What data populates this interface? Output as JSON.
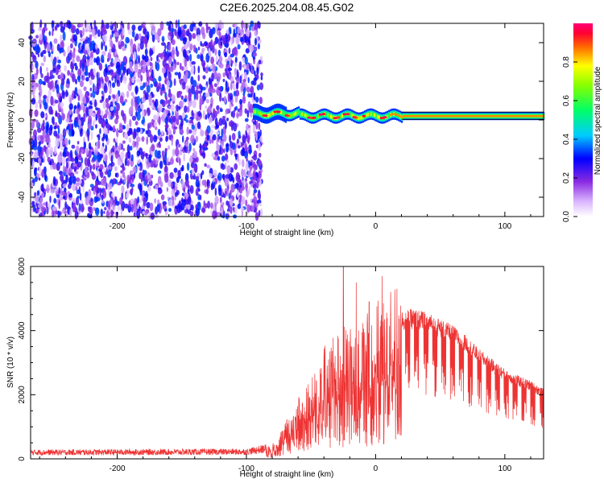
{
  "title": "C2E6.2025.204.08.45.G02",
  "colors": {
    "line": "#ee3333",
    "axis": "#000000"
  },
  "colorbar": {
    "label": "Normalized spectral amplitude",
    "range": [
      0,
      1
    ],
    "ticks": [
      "0.0",
      "0.2",
      "0.4",
      "0.6",
      "0.8"
    ],
    "tick_values": [
      0,
      0.2,
      0.4,
      0.6,
      0.8
    ],
    "colormap": "rainbow (white-violet-blue-cyan-green-yellow-red-magenta)"
  },
  "chart_data": [
    {
      "type": "heatmap",
      "xlabel": "Height of straight line (km)",
      "ylabel": "Frequency (Hz)",
      "xlim": [
        -267,
        130
      ],
      "ylim": [
        -50,
        50
      ],
      "x_ticks": [
        "-200",
        "-100",
        "0",
        "100"
      ],
      "x_tick_values": [
        -200,
        -100,
        0,
        100
      ],
      "y_ticks": [
        "-40",
        "-20",
        "0",
        "20",
        "40"
      ],
      "y_tick_values": [
        -40,
        -20,
        0,
        20,
        40
      ],
      "description_regions": {
        "noise_region_x": [
          -267,
          -88
        ],
        "noise_amplitude": [
          0.05,
          0.35
        ],
        "signal_band_center_hz": 2,
        "signal_band_start_x": -95,
        "signal_amplitude_range": [
          0.4,
          1.0
        ]
      }
    },
    {
      "type": "line",
      "xlabel": "Height of straight line (km)",
      "ylabel": "SNR (10 * v/v)",
      "xlim": [
        -267,
        130
      ],
      "ylim": [
        0,
        6000
      ],
      "x_ticks": [
        "-200",
        "-100",
        "0",
        "100"
      ],
      "x_tick_values": [
        -200,
        -100,
        0,
        100
      ],
      "y_ticks": [
        "0",
        "2000",
        "4000",
        "6000"
      ],
      "y_tick_values": [
        0,
        2000,
        4000,
        6000
      ],
      "series": [
        {
          "envelope": {
            "x": [
              -267,
              -100,
              -80,
              -70,
              -60,
              -50,
              -40,
              -30,
              -20,
              -10,
              0,
              10,
              20,
              30,
              40,
              50,
              60,
              70,
              80,
              90,
              100,
              110,
              120,
              130
            ],
            "y": [
              200,
              220,
              350,
              900,
              1600,
              2200,
              2800,
              3200,
              3400,
              3600,
              3900,
              4200,
              4450,
              4500,
              4400,
              4200,
              4000,
              3700,
              3300,
              3000,
              2700,
              2500,
              2350,
              2100
            ]
          },
          "peaks": {
            "x": [
              -25,
              -15,
              -5,
              5
            ],
            "y": [
              6000,
              5500,
              4900,
              5700
            ]
          }
        }
      ]
    }
  ]
}
